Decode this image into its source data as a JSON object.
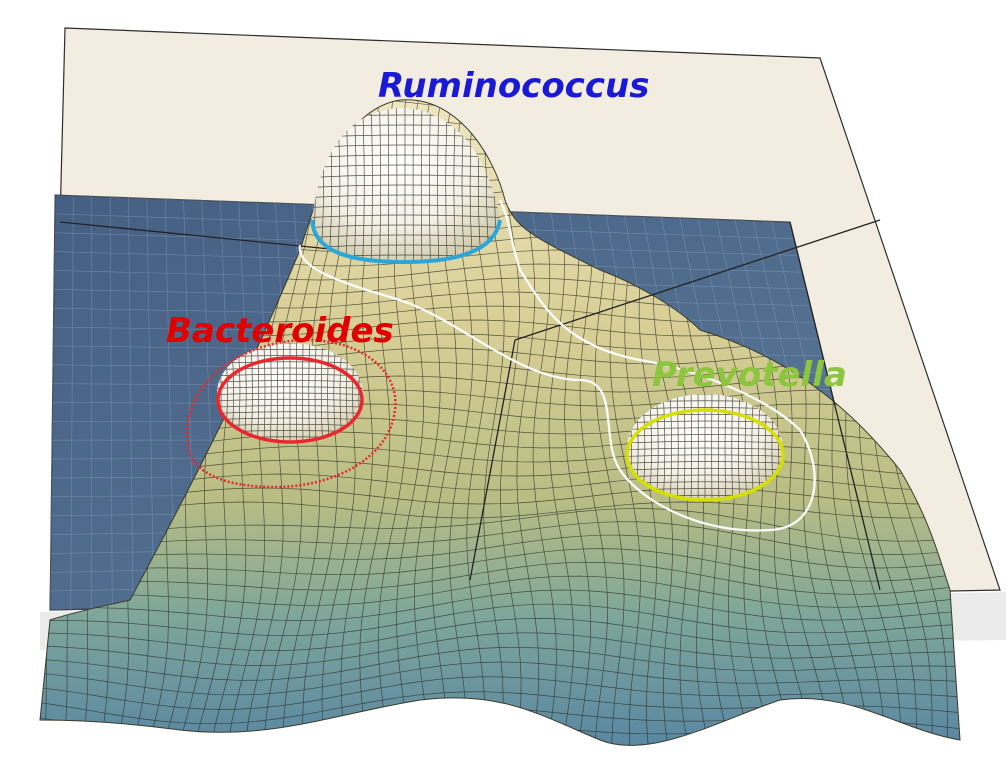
{
  "labels": {
    "ruminococcus": "Ruminococcus",
    "bacteroides": "Bacteroides",
    "prevotella": "Prevotella"
  },
  "colors": {
    "ruminococcus": "#1a1ad6",
    "bacteroides": "#e00000",
    "prevotella": "#8cc63f",
    "ruminococcus_ring": "#2aa7d8",
    "bacteroides_ring": "#e8282e",
    "prevotella_ring": "#d6e000",
    "contour": "#ffffff",
    "back_plane": "#f3ebe0",
    "base_plane": "#4e6a8c",
    "surface_high": "#e9dfb0",
    "surface_low": "#5f91a6"
  }
}
